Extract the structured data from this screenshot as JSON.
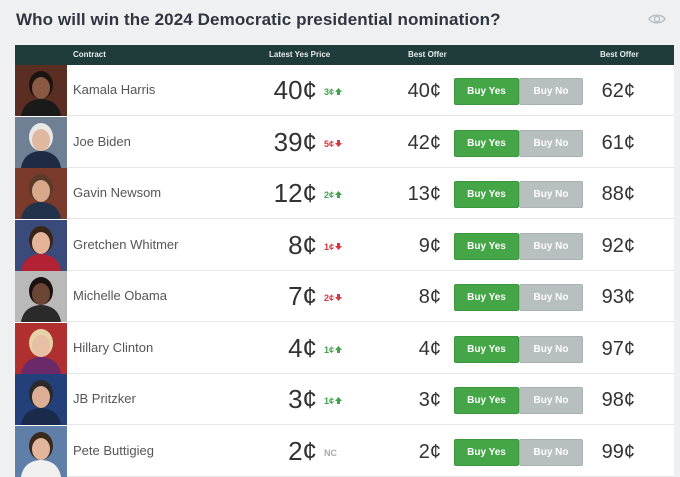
{
  "header": {
    "title": "Who will win the 2024 Democratic presidential nomination?"
  },
  "columns": {
    "contract": "Contract",
    "latest_yes_price": "Latest Yes Price",
    "best_offer_yes": "Best Offer",
    "best_offer_no": "Best Offer"
  },
  "buttons": {
    "buy_yes": "Buy Yes",
    "buy_no": "Buy No"
  },
  "colors": {
    "header_bg": "#1f3b3a",
    "buy_yes_bg": "#44a646",
    "buy_no_bg": "#b7bfbf",
    "up": "#3ea34a",
    "down": "#d9363e"
  },
  "contracts": [
    {
      "name": "Kamala Harris",
      "price": "40¢",
      "change": "3¢",
      "direction": "up",
      "best_yes": "40¢",
      "best_no": "62¢",
      "photo": {
        "bg": "#5a2e22",
        "face": "#8a5a44",
        "hair": "#1c1410",
        "shirt": "#1a1a1a"
      }
    },
    {
      "name": "Joe Biden",
      "price": "39¢",
      "change": "5¢",
      "direction": "down",
      "best_yes": "42¢",
      "best_no": "61¢",
      "photo": {
        "bg": "#6f7f94",
        "face": "#e0b8a0",
        "hair": "#e8e8e8",
        "shirt": "#1f2a44"
      }
    },
    {
      "name": "Gavin Newsom",
      "price": "12¢",
      "change": "2¢",
      "direction": "up",
      "best_yes": "13¢",
      "best_no": "88¢",
      "photo": {
        "bg": "#7a3a2c",
        "face": "#d9a88a",
        "hair": "#5a3a28",
        "shirt": "#22324a"
      }
    },
    {
      "name": "Gretchen Whitmer",
      "price": "8¢",
      "change": "1¢",
      "direction": "down",
      "best_yes": "9¢",
      "best_no": "92¢",
      "photo": {
        "bg": "#3a4a7a",
        "face": "#e3b49a",
        "hair": "#3a2418",
        "shirt": "#b22234"
      }
    },
    {
      "name": "Michelle Obama",
      "price": "7¢",
      "change": "2¢",
      "direction": "down",
      "best_yes": "8¢",
      "best_no": "93¢",
      "photo": {
        "bg": "#b9b9b9",
        "face": "#6b4634",
        "hair": "#1a1210",
        "shirt": "#2a2a2a"
      }
    },
    {
      "name": "Hillary Clinton",
      "price": "4¢",
      "change": "1¢",
      "direction": "up",
      "best_yes": "4¢",
      "best_no": "97¢",
      "photo": {
        "bg": "#b03030",
        "face": "#e6bfa4",
        "hair": "#e5d2a6",
        "shirt": "#6a2a6a"
      }
    },
    {
      "name": "JB Pritzker",
      "price": "3¢",
      "change": "1¢",
      "direction": "up",
      "best_yes": "3¢",
      "best_no": "98¢",
      "photo": {
        "bg": "#24407a",
        "face": "#dcae94",
        "hair": "#2a2a2a",
        "shirt": "#1a2a4a"
      }
    },
    {
      "name": "Pete Buttigieg",
      "price": "2¢",
      "change": "NC",
      "direction": "nc",
      "best_yes": "2¢",
      "best_no": "99¢",
      "photo": {
        "bg": "#5f7ea8",
        "face": "#e2b69c",
        "hair": "#3a2a1e",
        "shirt": "#f0f0f0"
      }
    }
  ]
}
